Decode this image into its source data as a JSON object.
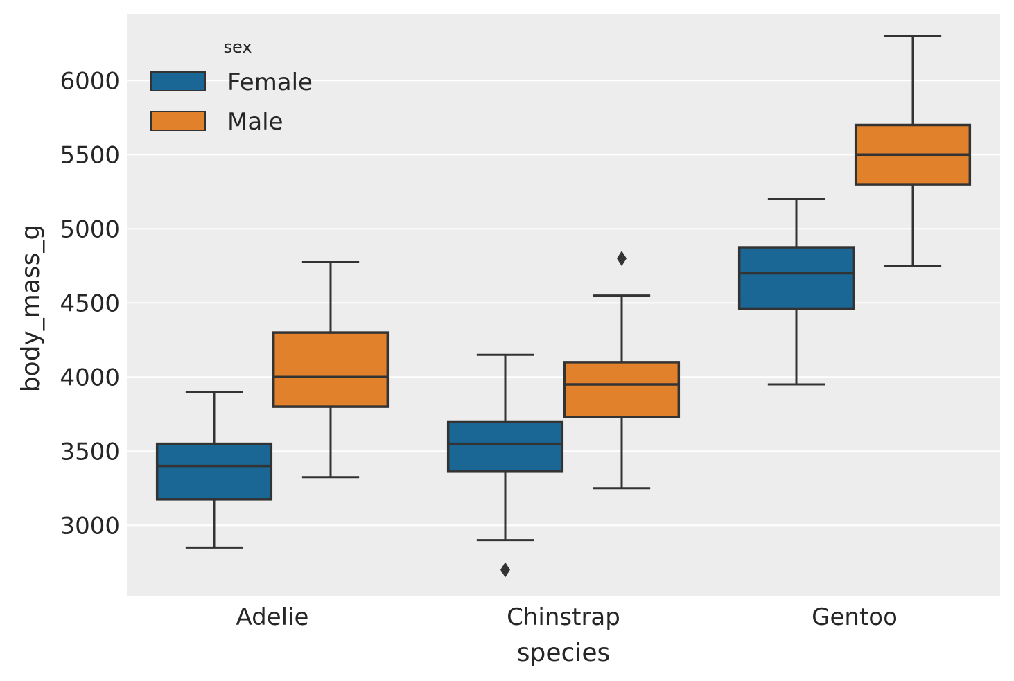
{
  "chart_data": {
    "type": "box",
    "xlabel": "species",
    "ylabel": "body_mass_g",
    "categories": [
      "Adelie",
      "Chinstrap",
      "Gentoo"
    ],
    "ylim": [
      2520,
      6450
    ],
    "yticks": [
      3000,
      3500,
      4000,
      4500,
      5000,
      5500,
      6000
    ],
    "grid": true,
    "legend": {
      "title": "sex",
      "placement": "top-left",
      "entries": [
        {
          "name": "Female",
          "color": "#1a6796"
        },
        {
          "name": "Male",
          "color": "#e1812c"
        }
      ]
    },
    "colors": {
      "background": "#ededed",
      "grid": "#ffffff",
      "box_edge": "#333333"
    },
    "series": [
      {
        "name": "Female",
        "color": "#1a6796",
        "boxes": [
          {
            "category": "Adelie",
            "whisker_low": 2850,
            "q1": 3175,
            "median": 3400,
            "q3": 3550,
            "whisker_high": 3900,
            "outliers": []
          },
          {
            "category": "Chinstrap",
            "whisker_low": 2900,
            "q1": 3362,
            "median": 3550,
            "q3": 3700,
            "whisker_high": 4150,
            "outliers": [
              2700
            ]
          },
          {
            "category": "Gentoo",
            "whisker_low": 3950,
            "q1": 4462,
            "median": 4700,
            "q3": 4875,
            "whisker_high": 5200,
            "outliers": []
          }
        ]
      },
      {
        "name": "Male",
        "color": "#e1812c",
        "boxes": [
          {
            "category": "Adelie",
            "whisker_low": 3325,
            "q1": 3800,
            "median": 4000,
            "q3": 4300,
            "whisker_high": 4775,
            "outliers": []
          },
          {
            "category": "Chinstrap",
            "whisker_low": 3250,
            "q1": 3731,
            "median": 3950,
            "q3": 4100,
            "whisker_high": 4550,
            "outliers": [
              4800
            ]
          },
          {
            "category": "Gentoo",
            "whisker_low": 4750,
            "q1": 5300,
            "median": 5500,
            "q3": 5700,
            "whisker_high": 6300,
            "outliers": []
          }
        ]
      }
    ]
  }
}
